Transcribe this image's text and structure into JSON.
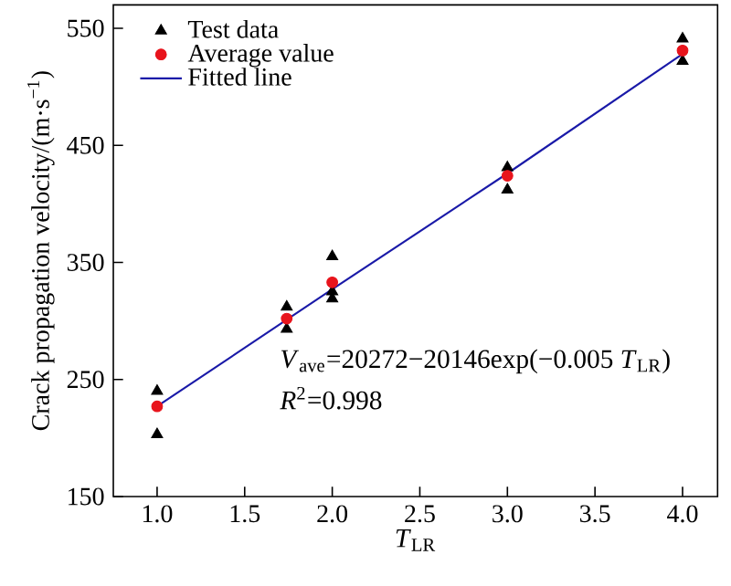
{
  "chart_data": {
    "type": "scatter",
    "xlabel": "*T*$_{LR}$",
    "ylabel": "Crack propagation velocity/(m·s$^{−1}$)",
    "xlim": [
      0.75,
      4.2
    ],
    "ylim": [
      150,
      570
    ],
    "xticks": [
      {
        "value": 1,
        "label": "1.0"
      },
      {
        "value": 1.5,
        "label": "1.5"
      },
      {
        "value": 2,
        "label": "2.0"
      },
      {
        "value": 2.5,
        "label": "2.5"
      },
      {
        "value": 3,
        "label": "3.0"
      },
      {
        "value": 3.5,
        "label": "3.5"
      },
      {
        "value": 4,
        "label": "4.0"
      }
    ],
    "yticks": [
      150,
      250,
      350,
      450,
      550
    ],
    "legend": "top left",
    "grid": false,
    "series": [
      {
        "name": "Test data",
        "marker": "triangle",
        "color": "#000000",
        "x": [
          1,
          1,
          1.74,
          1.74,
          2,
          2,
          2,
          3,
          3,
          4,
          4
        ],
        "values": [
          240,
          203,
          312,
          293,
          355,
          325,
          319,
          431,
          412,
          541,
          522
        ]
      },
      {
        "name": "Average value",
        "marker": "circle",
        "color": "#e8141c",
        "x": [
          1,
          1.74,
          2,
          3,
          4
        ],
        "values": [
          227,
          302,
          333,
          424,
          531
        ]
      },
      {
        "name": "Fitted line",
        "type": "line",
        "marker": "none",
        "line_style": "solid",
        "color": "#1a1aa8",
        "x": [
          1,
          2,
          3,
          4
        ],
        "values": [
          227,
          327,
          426,
          528
        ]
      }
    ],
    "annotations": [
      "*V*$_{ave}$=20272−20146exp(−0.005 *T*$_{LR}$)",
      "*R*$^{2}$=0.998"
    ]
  }
}
